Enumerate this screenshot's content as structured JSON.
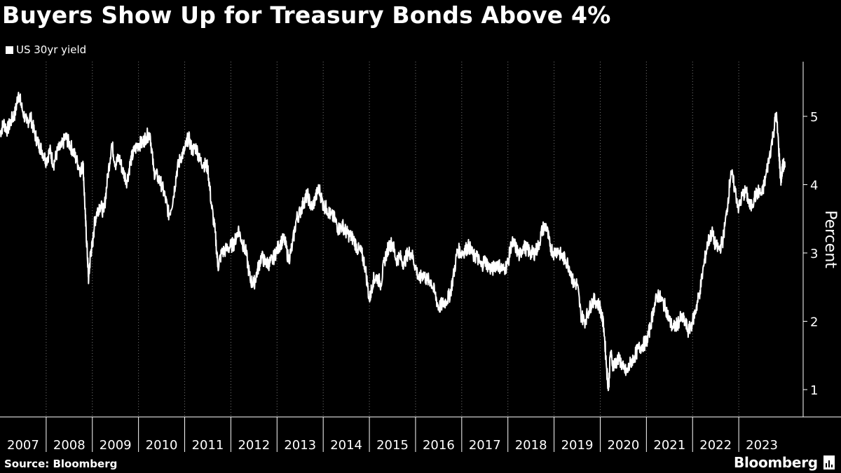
{
  "chart_data": {
    "type": "line",
    "title": "Buyers Show Up for Treasury Bonds Above 4%",
    "ylabel": "Percent",
    "xlabel": "",
    "ylim": [
      0.6,
      5.8
    ],
    "yticks": [
      1,
      2,
      3,
      4,
      5
    ],
    "xlim": [
      2007.0,
      2024.0
    ],
    "xticks": [
      "2007",
      "2008",
      "2009",
      "2010",
      "2011",
      "2012",
      "2013",
      "2014",
      "2015",
      "2016",
      "2017",
      "2018",
      "2019",
      "2020",
      "2021",
      "2022",
      "2023"
    ],
    "legend_position": "top-left",
    "grid": "vertical dotted",
    "series": [
      {
        "name": "US 30yr yield",
        "color": "#ffffff",
        "points": [
          [
            2007.0,
            4.75
          ],
          [
            2007.08,
            4.9
          ],
          [
            2007.16,
            4.8
          ],
          [
            2007.25,
            4.95
          ],
          [
            2007.33,
            5.05
          ],
          [
            2007.4,
            5.35
          ],
          [
            2007.48,
            5.1
          ],
          [
            2007.58,
            4.9
          ],
          [
            2007.66,
            5.0
          ],
          [
            2007.75,
            4.75
          ],
          [
            2007.83,
            4.6
          ],
          [
            2007.91,
            4.5
          ],
          [
            2008.0,
            4.35
          ],
          [
            2008.08,
            4.5
          ],
          [
            2008.16,
            4.3
          ],
          [
            2008.25,
            4.5
          ],
          [
            2008.33,
            4.55
          ],
          [
            2008.42,
            4.7
          ],
          [
            2008.5,
            4.6
          ],
          [
            2008.58,
            4.5
          ],
          [
            2008.66,
            4.35
          ],
          [
            2008.75,
            4.2
          ],
          [
            2008.8,
            4.3
          ],
          [
            2008.85,
            3.5
          ],
          [
            2008.89,
            3.0
          ],
          [
            2008.92,
            2.6
          ],
          [
            2008.96,
            3.0
          ],
          [
            2009.0,
            3.1
          ],
          [
            2009.05,
            3.45
          ],
          [
            2009.1,
            3.6
          ],
          [
            2009.16,
            3.7
          ],
          [
            2009.25,
            3.6
          ],
          [
            2009.33,
            4.1
          ],
          [
            2009.42,
            4.6
          ],
          [
            2009.5,
            4.3
          ],
          [
            2009.58,
            4.4
          ],
          [
            2009.66,
            4.2
          ],
          [
            2009.75,
            4.05
          ],
          [
            2009.83,
            4.35
          ],
          [
            2009.91,
            4.5
          ],
          [
            2010.0,
            4.6
          ],
          [
            2010.08,
            4.6
          ],
          [
            2010.16,
            4.7
          ],
          [
            2010.25,
            4.75
          ],
          [
            2010.33,
            4.2
          ],
          [
            2010.42,
            4.1
          ],
          [
            2010.5,
            4.0
          ],
          [
            2010.58,
            3.8
          ],
          [
            2010.66,
            3.55
          ],
          [
            2010.75,
            3.8
          ],
          [
            2010.83,
            4.2
          ],
          [
            2010.91,
            4.4
          ],
          [
            2011.0,
            4.5
          ],
          [
            2011.08,
            4.7
          ],
          [
            2011.16,
            4.5
          ],
          [
            2011.25,
            4.55
          ],
          [
            2011.33,
            4.35
          ],
          [
            2011.42,
            4.3
          ],
          [
            2011.5,
            4.25
          ],
          [
            2011.58,
            3.7
          ],
          [
            2011.66,
            3.3
          ],
          [
            2011.72,
            2.8
          ],
          [
            2011.8,
            3.0
          ],
          [
            2011.9,
            3.05
          ],
          [
            2012.0,
            3.1
          ],
          [
            2012.08,
            3.15
          ],
          [
            2012.16,
            3.35
          ],
          [
            2012.25,
            3.15
          ],
          [
            2012.33,
            3.0
          ],
          [
            2012.42,
            2.6
          ],
          [
            2012.5,
            2.55
          ],
          [
            2012.58,
            2.75
          ],
          [
            2012.66,
            2.95
          ],
          [
            2012.75,
            2.85
          ],
          [
            2012.83,
            2.85
          ],
          [
            2012.91,
            2.9
          ],
          [
            2013.0,
            3.05
          ],
          [
            2013.08,
            3.15
          ],
          [
            2013.16,
            3.2
          ],
          [
            2013.25,
            2.9
          ],
          [
            2013.33,
            3.1
          ],
          [
            2013.42,
            3.5
          ],
          [
            2013.5,
            3.6
          ],
          [
            2013.58,
            3.75
          ],
          [
            2013.66,
            3.85
          ],
          [
            2013.75,
            3.65
          ],
          [
            2013.83,
            3.8
          ],
          [
            2013.91,
            3.95
          ],
          [
            2014.0,
            3.7
          ],
          [
            2014.08,
            3.65
          ],
          [
            2014.16,
            3.55
          ],
          [
            2014.25,
            3.5
          ],
          [
            2014.33,
            3.35
          ],
          [
            2014.42,
            3.4
          ],
          [
            2014.5,
            3.3
          ],
          [
            2014.58,
            3.25
          ],
          [
            2014.66,
            3.2
          ],
          [
            2014.75,
            3.05
          ],
          [
            2014.83,
            3.0
          ],
          [
            2014.91,
            2.8
          ],
          [
            2015.0,
            2.3
          ],
          [
            2015.08,
            2.6
          ],
          [
            2015.16,
            2.65
          ],
          [
            2015.25,
            2.55
          ],
          [
            2015.33,
            2.9
          ],
          [
            2015.42,
            3.1
          ],
          [
            2015.5,
            3.15
          ],
          [
            2015.58,
            2.9
          ],
          [
            2015.66,
            2.95
          ],
          [
            2015.75,
            2.85
          ],
          [
            2015.83,
            3.0
          ],
          [
            2015.91,
            3.0
          ],
          [
            2016.0,
            2.8
          ],
          [
            2016.08,
            2.6
          ],
          [
            2016.16,
            2.7
          ],
          [
            2016.25,
            2.6
          ],
          [
            2016.33,
            2.6
          ],
          [
            2016.42,
            2.4
          ],
          [
            2016.5,
            2.2
          ],
          [
            2016.58,
            2.25
          ],
          [
            2016.66,
            2.3
          ],
          [
            2016.75,
            2.4
          ],
          [
            2016.83,
            2.7
          ],
          [
            2016.91,
            3.05
          ],
          [
            2017.0,
            3.0
          ],
          [
            2017.08,
            3.05
          ],
          [
            2017.16,
            3.1
          ],
          [
            2017.25,
            2.95
          ],
          [
            2017.33,
            2.95
          ],
          [
            2017.42,
            2.8
          ],
          [
            2017.5,
            2.9
          ],
          [
            2017.58,
            2.8
          ],
          [
            2017.66,
            2.75
          ],
          [
            2017.75,
            2.85
          ],
          [
            2017.83,
            2.8
          ],
          [
            2017.91,
            2.75
          ],
          [
            2018.0,
            2.85
          ],
          [
            2018.08,
            3.15
          ],
          [
            2018.16,
            3.1
          ],
          [
            2018.25,
            2.95
          ],
          [
            2018.33,
            3.1
          ],
          [
            2018.42,
            3.05
          ],
          [
            2018.5,
            3.0
          ],
          [
            2018.58,
            3.0
          ],
          [
            2018.66,
            3.1
          ],
          [
            2018.75,
            3.35
          ],
          [
            2018.83,
            3.4
          ],
          [
            2018.91,
            3.1
          ],
          [
            2019.0,
            3.0
          ],
          [
            2019.08,
            3.05
          ],
          [
            2019.16,
            2.95
          ],
          [
            2019.25,
            2.9
          ],
          [
            2019.33,
            2.8
          ],
          [
            2019.42,
            2.55
          ],
          [
            2019.5,
            2.55
          ],
          [
            2019.58,
            2.1
          ],
          [
            2019.66,
            2.0
          ],
          [
            2019.75,
            2.15
          ],
          [
            2019.83,
            2.3
          ],
          [
            2019.91,
            2.3
          ],
          [
            2020.0,
            2.2
          ],
          [
            2020.08,
            1.9
          ],
          [
            2020.14,
            1.3
          ],
          [
            2020.18,
            1.0
          ],
          [
            2020.22,
            1.55
          ],
          [
            2020.28,
            1.35
          ],
          [
            2020.33,
            1.4
          ],
          [
            2020.42,
            1.45
          ],
          [
            2020.5,
            1.3
          ],
          [
            2020.58,
            1.25
          ],
          [
            2020.66,
            1.4
          ],
          [
            2020.75,
            1.5
          ],
          [
            2020.83,
            1.6
          ],
          [
            2020.91,
            1.65
          ],
          [
            2021.0,
            1.7
          ],
          [
            2021.08,
            1.9
          ],
          [
            2021.16,
            2.2
          ],
          [
            2021.25,
            2.4
          ],
          [
            2021.33,
            2.3
          ],
          [
            2021.42,
            2.2
          ],
          [
            2021.5,
            2.0
          ],
          [
            2021.58,
            1.9
          ],
          [
            2021.66,
            1.95
          ],
          [
            2021.75,
            2.05
          ],
          [
            2021.83,
            2.0
          ],
          [
            2021.91,
            1.85
          ],
          [
            2022.0,
            2.0
          ],
          [
            2022.08,
            2.2
          ],
          [
            2022.16,
            2.45
          ],
          [
            2022.25,
            2.85
          ],
          [
            2022.33,
            3.15
          ],
          [
            2022.42,
            3.3
          ],
          [
            2022.5,
            3.1
          ],
          [
            2022.58,
            3.05
          ],
          [
            2022.66,
            3.2
          ],
          [
            2022.75,
            3.65
          ],
          [
            2022.83,
            4.2
          ],
          [
            2022.91,
            3.95
          ],
          [
            2023.0,
            3.65
          ],
          [
            2023.08,
            3.85
          ],
          [
            2023.16,
            3.9
          ],
          [
            2023.25,
            3.65
          ],
          [
            2023.33,
            3.8
          ],
          [
            2023.42,
            3.9
          ],
          [
            2023.5,
            3.85
          ],
          [
            2023.58,
            4.1
          ],
          [
            2023.66,
            4.4
          ],
          [
            2023.75,
            4.75
          ],
          [
            2023.81,
            5.05
          ],
          [
            2023.86,
            4.6
          ],
          [
            2023.91,
            4.05
          ],
          [
            2023.96,
            4.3
          ],
          [
            2024.0,
            4.25
          ]
        ]
      }
    ]
  },
  "source": "Source: Bloomberg",
  "brand": "Bloomberg"
}
